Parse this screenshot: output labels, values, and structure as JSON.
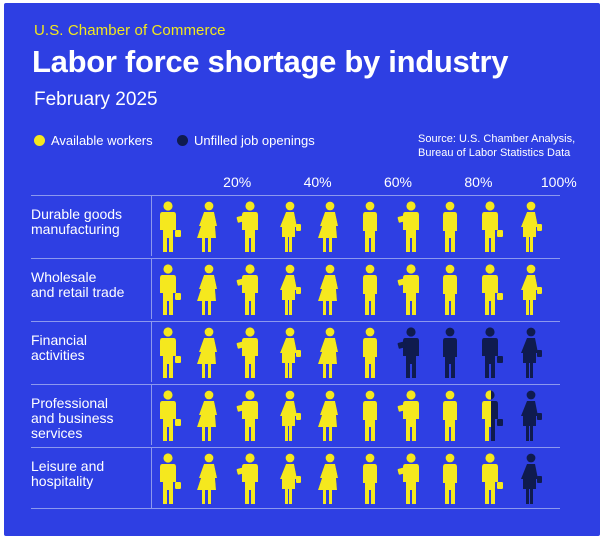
{
  "header": {
    "organization": "U.S. Chamber of Commerce",
    "title": "Labor force shortage by industry",
    "subtitle": "February 2025"
  },
  "legend": {
    "available": "Available workers",
    "unfilled": "Unfilled job openings"
  },
  "source": {
    "line1": "Source: U.S. Chamber Analysis,",
    "line2": "Bureau of Labor Statistics Data"
  },
  "colors": {
    "background": "#2e3fe3",
    "available": "#f5e81e",
    "unfilled": "#0f1b4f",
    "org_text": "#f2e81c",
    "rule": "#8c98ee"
  },
  "chart_data": {
    "type": "pictograph",
    "title": "Labor force shortage by industry",
    "subtitle": "February 2025",
    "x_ticks": [
      "20%",
      "40%",
      "60%",
      "80%",
      "100%"
    ],
    "icons_per_row": 10,
    "series": [
      {
        "name": "Available workers",
        "color": "#f5e81e"
      },
      {
        "name": "Unfilled job openings",
        "color": "#0f1b4f"
      }
    ],
    "categories": [
      "Durable goods\nmanufacturing",
      "Wholesale\nand retail trade",
      "Financial\nactivities",
      "Professional\nand business\nservices",
      "Leisure and\nhospitality"
    ],
    "available_pct": [
      100,
      100,
      60,
      85,
      90
    ]
  }
}
